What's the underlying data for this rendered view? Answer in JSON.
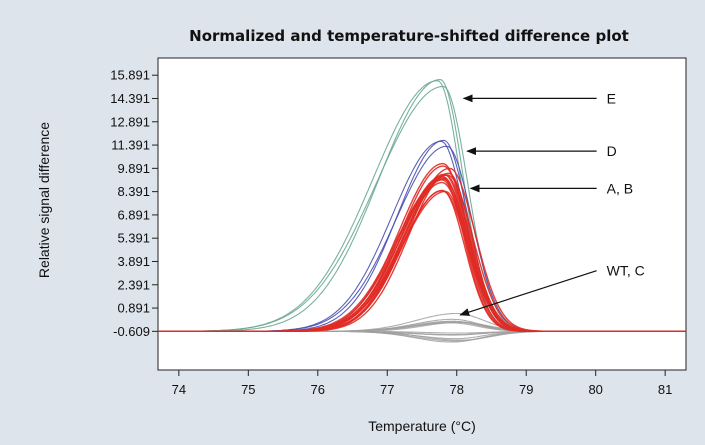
{
  "chart_data": {
    "type": "line",
    "title": "Normalized and temperature-shifted difference plot",
    "xlabel": "Temperature (°C)",
    "ylabel": "Relative signal difference",
    "xlim": [
      73.7,
      81.3
    ],
    "ylim": [
      -3.1,
      17.0
    ],
    "x_ticks": [
      74,
      75,
      76,
      77,
      78,
      79,
      80,
      81
    ],
    "y_ticks": [
      -0.609,
      0.891,
      2.391,
      3.891,
      5.391,
      6.891,
      8.391,
      9.891,
      11.391,
      12.891,
      14.391,
      15.891
    ],
    "grid": false,
    "colors": {
      "E": "#6aa894",
      "D": "#4b4fb0",
      "A_B": "#e02a24",
      "WT_C": "#a0a0a0",
      "background": "#dde4ec",
      "plot_background": "#ffffff"
    },
    "series": [
      {
        "curve_group": "E",
        "peak_x": 77.75,
        "peak_y": 15.5,
        "curve_count": 3
      },
      {
        "curve_group": "D",
        "peak_x": 77.8,
        "peak_y": 11.6,
        "curve_count": 3
      },
      {
        "curve_group": "A, B",
        "peak_x": 77.85,
        "peak_y": 9.3,
        "curve_count": 16
      },
      {
        "curve_group": "WT, C",
        "peak_x": 78.0,
        "peak_y": 0.3,
        "curve_count": 14
      }
    ],
    "annotations": [
      {
        "text": "E",
        "point_x": 78.1,
        "point_y": 14.4,
        "text_x": 80.1,
        "text_y": 14.4
      },
      {
        "text": "D",
        "point_x": 78.15,
        "point_y": 11.0,
        "text_x": 80.1,
        "text_y": 11.0
      },
      {
        "text": "A, B",
        "point_x": 78.2,
        "point_y": 8.6,
        "text_x": 80.1,
        "text_y": 8.6
      },
      {
        "text": "WT, C",
        "point_x": 78.05,
        "point_y": 0.45,
        "text_x": 80.1,
        "text_y": 3.3
      }
    ]
  }
}
